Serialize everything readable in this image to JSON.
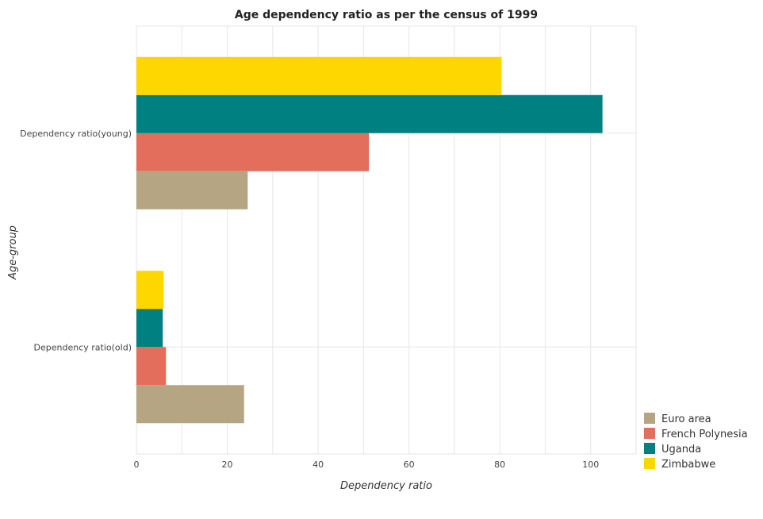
{
  "chart_data": {
    "type": "bar",
    "orientation": "horizontal",
    "title": "Age dependency ratio as per the census of 1999",
    "xlabel": "Dependency ratio",
    "ylabel": "Age-group",
    "categories": [
      "Dependency ratio(old)",
      "Dependency ratio(young)"
    ],
    "xlim": [
      0,
      110
    ],
    "xticks": [
      0,
      20,
      40,
      60,
      80,
      100
    ],
    "grid": true,
    "legend_position": "bottom-right",
    "series": [
      {
        "name": "Euro area",
        "color": "#b5a582",
        "values": [
          23.7,
          24.5
        ]
      },
      {
        "name": "French Polynesia",
        "color": "#e46e5c",
        "values": [
          6.5,
          51.2
        ]
      },
      {
        "name": "Uganda",
        "color": "#008080",
        "values": [
          5.8,
          102.6
        ]
      },
      {
        "name": "Zimbabwe",
        "color": "#ffd700",
        "values": [
          6.0,
          80.4
        ]
      }
    ]
  }
}
